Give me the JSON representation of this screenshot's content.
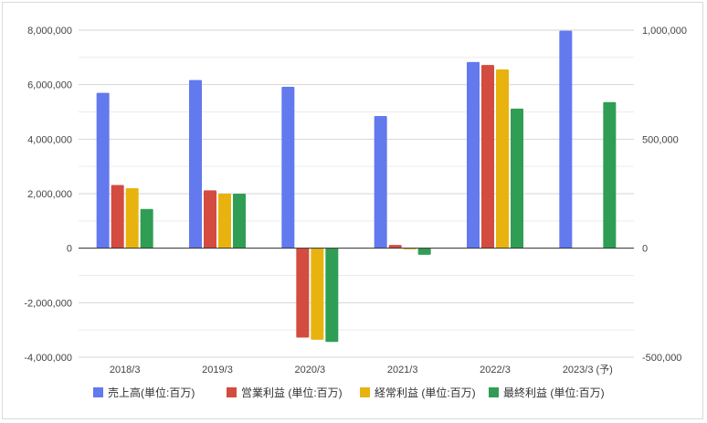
{
  "chart_data": {
    "type": "bar",
    "categories": [
      "2018/3",
      "2019/3",
      "2020/3",
      "2021/3",
      "2022/3",
      "2023/3 (予)"
    ],
    "left_axis": {
      "ylim": [
        -4000000,
        8000000
      ],
      "ticks": [
        8000000,
        6000000,
        4000000,
        2000000,
        0,
        -2000000,
        -4000000
      ],
      "tick_labels": [
        "8,000,000",
        "6,000,000",
        "4,000,000",
        "2,000,000",
        "0",
        "-2,000,000",
        "-4,000,000"
      ]
    },
    "right_axis": {
      "ylim": [
        -500000,
        1000000
      ],
      "ticks": [
        1000000,
        500000,
        0,
        -500000
      ],
      "tick_labels": [
        "1,000,000",
        "500,000",
        "0",
        "-500,000"
      ]
    },
    "series": [
      {
        "name": "売上高(単位:百万)",
        "axis": "left",
        "color": "#6379ee",
        "values": [
          5700000,
          6170000,
          5920000,
          4850000,
          6830000,
          7980000
        ]
      },
      {
        "name": "営業利益 (単位:百万)",
        "axis": "right",
        "color": "#d44b3f",
        "values": [
          290000,
          265000,
          -410000,
          15000,
          840000,
          null
        ]
      },
      {
        "name": "経常利益 (単位:百万)",
        "axis": "right",
        "color": "#e8b30f",
        "values": [
          275000,
          250000,
          -420000,
          -5000,
          820000,
          null
        ]
      },
      {
        "name": "最終利益 (単位:百万)",
        "axis": "right",
        "color": "#2f9e54",
        "values": [
          180000,
          250000,
          -430000,
          -30000,
          640000,
          670000
        ]
      }
    ],
    "grid": true,
    "legend_position": "bottom"
  }
}
